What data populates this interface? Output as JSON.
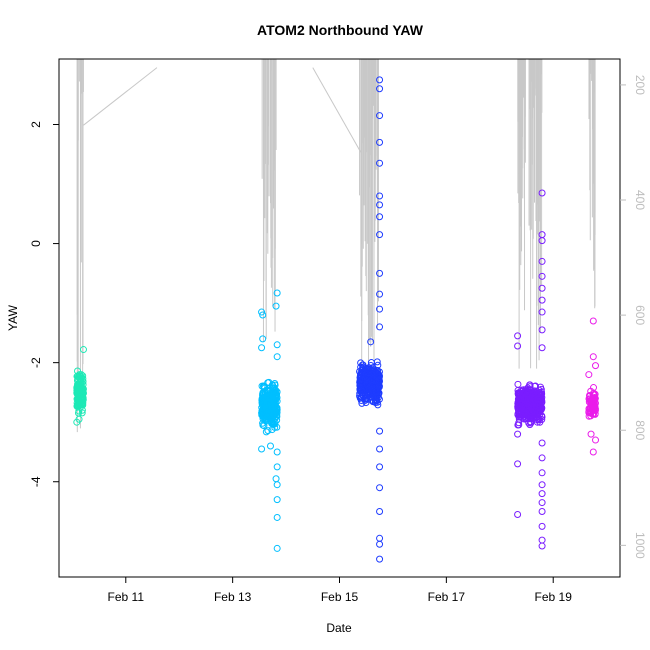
{
  "chart_data": {
    "type": "scatter",
    "title": "ATOM2 Northbound YAW",
    "xlabel": "Date",
    "ylabel": "YAW",
    "x_axis_type": "date",
    "xlim": [
      "2016-02-09T18:00",
      "2016-02-20T06:00"
    ],
    "ylim": [
      -5.6,
      3.1
    ],
    "y2lim": [
      1055,
      155
    ],
    "y2_scale": "reversed",
    "x_ticks": [
      {
        "value": "2016-02-11",
        "label": "Feb 11"
      },
      {
        "value": "2016-02-13",
        "label": "Feb 13"
      },
      {
        "value": "2016-02-15",
        "label": "Feb 15"
      },
      {
        "value": "2016-02-17",
        "label": "Feb 17"
      },
      {
        "value": "2016-02-19",
        "label": "Feb 19"
      }
    ],
    "y_ticks": [
      {
        "value": 2,
        "label": "2"
      },
      {
        "value": 0,
        "label": "0"
      },
      {
        "value": -2,
        "label": "-2"
      },
      {
        "value": -4,
        "label": "-4"
      }
    ],
    "y2_ticks": [
      {
        "value": 200,
        "label": "200"
      },
      {
        "value": 400,
        "label": "400"
      },
      {
        "value": 600,
        "label": "600"
      },
      {
        "value": 800,
        "label": "800"
      },
      {
        "value": 1000,
        "label": "1000"
      }
    ],
    "grid": false,
    "legend": "none",
    "marker": "open-circle",
    "line_color": "#c8c8c8",
    "y2_tick_color": "#bdbdbd",
    "clusters": [
      {
        "color": "#1de9b6",
        "x_range": [
          "2016-02-10T02:00",
          "2016-02-10T05:00"
        ],
        "core_yaw_range": [
          -2.95,
          -2.1
        ],
        "points": [
          {
            "x": "2016-02-10T05:00",
            "y": -1.78
          },
          {
            "x": "2016-02-10T04:00",
            "y": -2.2
          },
          {
            "x": "2016-02-10T02:00",
            "y": -3.0
          },
          {
            "x": "2016-02-10T03:00",
            "y": -2.95
          }
        ]
      },
      {
        "color": "#00bfff",
        "x_range": [
          "2016-02-13T13:00",
          "2016-02-13T20:00"
        ],
        "core_yaw_range": [
          -3.2,
          -2.25
        ],
        "points": [
          {
            "x": "2016-02-13T20:00",
            "y": -0.83
          },
          {
            "x": "2016-02-13T19:30",
            "y": -1.05
          },
          {
            "x": "2016-02-13T13:00",
            "y": -1.15
          },
          {
            "x": "2016-02-13T13:30",
            "y": -1.2
          },
          {
            "x": "2016-02-13T13:30",
            "y": -1.6
          },
          {
            "x": "2016-02-13T13:00",
            "y": -1.75
          },
          {
            "x": "2016-02-13T20:00",
            "y": -1.7
          },
          {
            "x": "2016-02-13T20:00",
            "y": -1.9
          },
          {
            "x": "2016-02-13T13:00",
            "y": -3.45
          },
          {
            "x": "2016-02-13T20:00",
            "y": -3.5
          },
          {
            "x": "2016-02-13T20:00",
            "y": -3.75
          },
          {
            "x": "2016-02-13T19:30",
            "y": -3.95
          },
          {
            "x": "2016-02-13T20:00",
            "y": -4.05
          },
          {
            "x": "2016-02-13T20:00",
            "y": -4.3
          },
          {
            "x": "2016-02-13T20:00",
            "y": -4.6
          },
          {
            "x": "2016-02-13T20:00",
            "y": -5.12
          },
          {
            "x": "2016-02-13T17:00",
            "y": -3.4
          }
        ]
      },
      {
        "color": "#1e3cff",
        "x_range": [
          "2016-02-15T09:00",
          "2016-02-15T18:00"
        ],
        "core_yaw_range": [
          -2.8,
          -1.9
        ],
        "points": [
          {
            "x": "2016-02-15T18:00",
            "y": 2.75
          },
          {
            "x": "2016-02-15T18:00",
            "y": 2.6
          },
          {
            "x": "2016-02-15T18:00",
            "y": 2.15
          },
          {
            "x": "2016-02-15T18:00",
            "y": 1.7
          },
          {
            "x": "2016-02-15T18:00",
            "y": 1.35
          },
          {
            "x": "2016-02-15T18:00",
            "y": 0.8
          },
          {
            "x": "2016-02-15T18:00",
            "y": 0.65
          },
          {
            "x": "2016-02-15T18:00",
            "y": 0.45
          },
          {
            "x": "2016-02-15T18:00",
            "y": 0.15
          },
          {
            "x": "2016-02-15T18:00",
            "y": -0.5
          },
          {
            "x": "2016-02-15T18:00",
            "y": -0.85
          },
          {
            "x": "2016-02-15T18:00",
            "y": -1.1
          },
          {
            "x": "2016-02-15T18:00",
            "y": -1.4
          },
          {
            "x": "2016-02-15T14:00",
            "y": -1.65
          },
          {
            "x": "2016-02-15T18:00",
            "y": -3.15
          },
          {
            "x": "2016-02-15T18:00",
            "y": -3.45
          },
          {
            "x": "2016-02-15T18:00",
            "y": -3.75
          },
          {
            "x": "2016-02-15T18:00",
            "y": -4.1
          },
          {
            "x": "2016-02-15T18:00",
            "y": -4.5
          },
          {
            "x": "2016-02-15T18:00",
            "y": -4.95
          },
          {
            "x": "2016-02-15T18:00",
            "y": -5.05
          },
          {
            "x": "2016-02-15T18:00",
            "y": -5.3
          }
        ]
      },
      {
        "color": "#7a1dff",
        "x_range": [
          "2016-02-18T08:00",
          "2016-02-18T19:00"
        ],
        "core_yaw_range": [
          -3.1,
          -2.3
        ],
        "points": [
          {
            "x": "2016-02-18T19:00",
            "y": 0.85
          },
          {
            "x": "2016-02-18T19:00",
            "y": 0.15
          },
          {
            "x": "2016-02-18T19:00",
            "y": 0.05
          },
          {
            "x": "2016-02-18T19:00",
            "y": -0.3
          },
          {
            "x": "2016-02-18T19:00",
            "y": -0.55
          },
          {
            "x": "2016-02-18T19:00",
            "y": -0.75
          },
          {
            "x": "2016-02-18T19:00",
            "y": -0.95
          },
          {
            "x": "2016-02-18T19:00",
            "y": -1.15
          },
          {
            "x": "2016-02-18T19:00",
            "y": -1.45
          },
          {
            "x": "2016-02-18T08:00",
            "y": -1.55
          },
          {
            "x": "2016-02-18T08:00",
            "y": -1.72
          },
          {
            "x": "2016-02-18T19:00",
            "y": -1.75
          },
          {
            "x": "2016-02-18T08:00",
            "y": -3.2
          },
          {
            "x": "2016-02-18T08:00",
            "y": -3.7
          },
          {
            "x": "2016-02-18T19:00",
            "y": -3.35
          },
          {
            "x": "2016-02-18T19:00",
            "y": -3.6
          },
          {
            "x": "2016-02-18T19:00",
            "y": -3.85
          },
          {
            "x": "2016-02-18T19:00",
            "y": -4.05
          },
          {
            "x": "2016-02-18T19:00",
            "y": -4.2
          },
          {
            "x": "2016-02-18T19:00",
            "y": -4.35
          },
          {
            "x": "2016-02-18T19:00",
            "y": -4.5
          },
          {
            "x": "2016-02-18T08:00",
            "y": -4.55
          },
          {
            "x": "2016-02-18T19:00",
            "y": -4.75
          },
          {
            "x": "2016-02-18T19:00",
            "y": -4.98
          },
          {
            "x": "2016-02-18T19:00",
            "y": -5.08
          }
        ]
      },
      {
        "color": "#ea1dea",
        "x_range": [
          "2016-02-19T16:00",
          "2016-02-19T19:00"
        ],
        "core_yaw_range": [
          -3.0,
          -2.4
        ],
        "points": [
          {
            "x": "2016-02-19T18:00",
            "y": -1.3
          },
          {
            "x": "2016-02-19T18:00",
            "y": -1.9
          },
          {
            "x": "2016-02-19T19:00",
            "y": -2.05
          },
          {
            "x": "2016-02-19T16:00",
            "y": -2.2
          },
          {
            "x": "2016-02-19T19:00",
            "y": -3.3
          },
          {
            "x": "2016-02-19T18:00",
            "y": -3.5
          },
          {
            "x": "2016-02-19T17:00",
            "y": -3.2
          }
        ]
      }
    ],
    "bursts": [
      {
        "x_range": [
          "2016-02-10T02:00",
          "2016-02-10T05:00"
        ],
        "y2_low": 175,
        "y2_high": 805
      },
      {
        "x_range": [
          "2016-02-13T13:00",
          "2016-02-13T20:00"
        ],
        "y2_low": 175,
        "y2_high": 730
      },
      {
        "x_range": [
          "2016-02-15T09:00",
          "2016-02-15T18:00"
        ],
        "y2_low": 175,
        "y2_high": 690
      },
      {
        "x_range": [
          "2016-02-18T08:00",
          "2016-02-18T19:00"
        ],
        "y2_low": 175,
        "y2_high": 700
      },
      {
        "x_range": [
          "2016-02-19T16:00",
          "2016-02-19T19:00"
        ],
        "y2_low": 175,
        "y2_high": 615
      }
    ],
    "connector_lines": [
      {
        "x": [
          "2016-02-10T05:00",
          "2016-02-11T14:00"
        ],
        "y2": [
          270,
          170
        ]
      },
      {
        "x": [
          "2016-02-14T12:00",
          "2016-02-15T10:00"
        ],
        "y2": [
          170,
          320
        ]
      }
    ]
  }
}
